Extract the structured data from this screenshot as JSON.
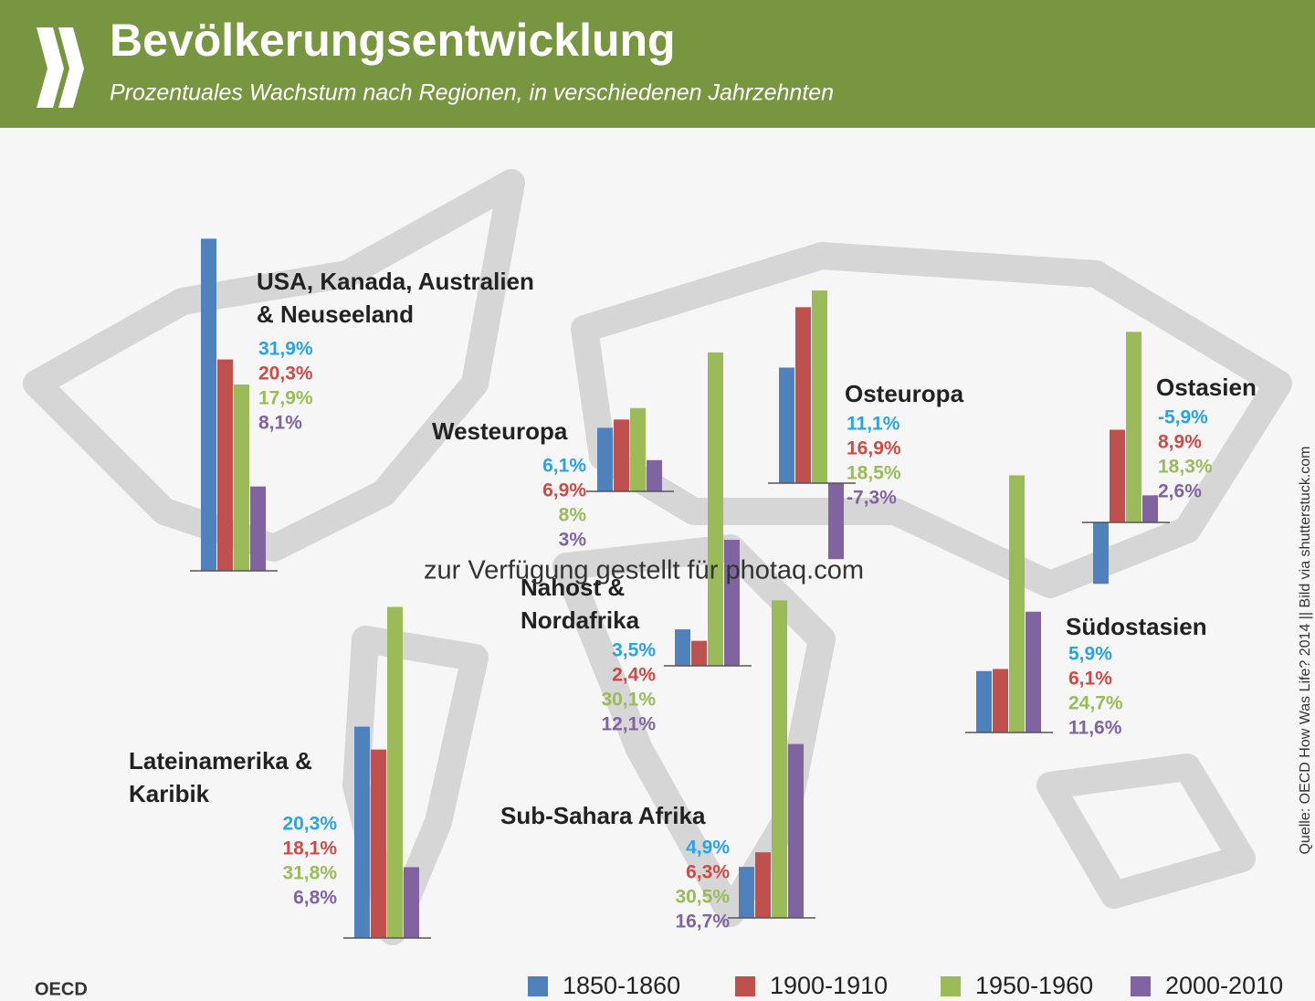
{
  "title": "Bevölkerungsentwicklung",
  "subtitle": "Prozentuales Wachstum nach Regionen, in verschiedenen Jahrzehnten",
  "source": "Quelle: OECD How Was Life? 2014 || Bild via shutterstuck.com",
  "watermark": "zur Verfügung gestellt für photaq.com",
  "logo": "OECD",
  "legend": [
    {
      "name": "1850-1860",
      "color": "#4f81bd",
      "label_color": "#2aa3e0"
    },
    {
      "name": "1900-1910",
      "color": "#c0504d",
      "label_color": "#c94c48"
    },
    {
      "name": "1950-1960",
      "color": "#9bbb59",
      "label_color": "#9bbb59"
    },
    {
      "name": "2000-2010",
      "color": "#8064a2",
      "label_color": "#8064a2"
    }
  ],
  "chart_data": [
    {
      "type": "bar",
      "title": [
        "USA, Kanada, Australien",
        "& Neuseeland"
      ],
      "values": [
        31.9,
        20.3,
        17.9,
        8.1
      ],
      "value_labels": [
        "31,9%",
        "20,3%",
        "17,9%",
        "8,1%"
      ]
    },
    {
      "type": "bar",
      "title": [
        "Westeuropa"
      ],
      "values": [
        6.1,
        6.9,
        8,
        3
      ],
      "value_labels": [
        "6,1%",
        "6,9%",
        "8%",
        "3%"
      ]
    },
    {
      "type": "bar",
      "title": [
        "Osteuropa"
      ],
      "values": [
        11.1,
        16.9,
        18.5,
        -7.3
      ],
      "value_labels": [
        "11,1%",
        "16,9%",
        "18,5%",
        "-7,3%"
      ]
    },
    {
      "type": "bar",
      "title": [
        "Ostasien"
      ],
      "values": [
        -5.9,
        8.9,
        18.3,
        2.6
      ],
      "value_labels": [
        "-5,9%",
        "8,9%",
        "18,3%",
        "2,6%"
      ]
    },
    {
      "type": "bar",
      "title": [
        "Nahost &",
        "Nordafrika"
      ],
      "values": [
        3.5,
        2.4,
        30.1,
        12.1
      ],
      "value_labels": [
        "3,5%",
        "2,4%",
        "30,1%",
        "12,1%"
      ]
    },
    {
      "type": "bar",
      "title": [
        "Südostasien"
      ],
      "values": [
        5.9,
        6.1,
        24.7,
        11.6
      ],
      "value_labels": [
        "5,9%",
        "6,1%",
        "24,7%",
        "11,6%"
      ]
    },
    {
      "type": "bar",
      "title": [
        "Lateinamerika &",
        "Karibik"
      ],
      "values": [
        20.3,
        18.1,
        31.8,
        6.8
      ],
      "value_labels": [
        "20,3%",
        "18,1%",
        "31,8%",
        "6,8%"
      ]
    },
    {
      "type": "bar",
      "title": [
        "Sub-Sahara Afrika"
      ],
      "values": [
        4.9,
        6.3,
        30.5,
        16.7
      ],
      "value_labels": [
        "4,9%",
        "6,3%",
        "30,5%",
        "16,7%"
      ]
    }
  ]
}
